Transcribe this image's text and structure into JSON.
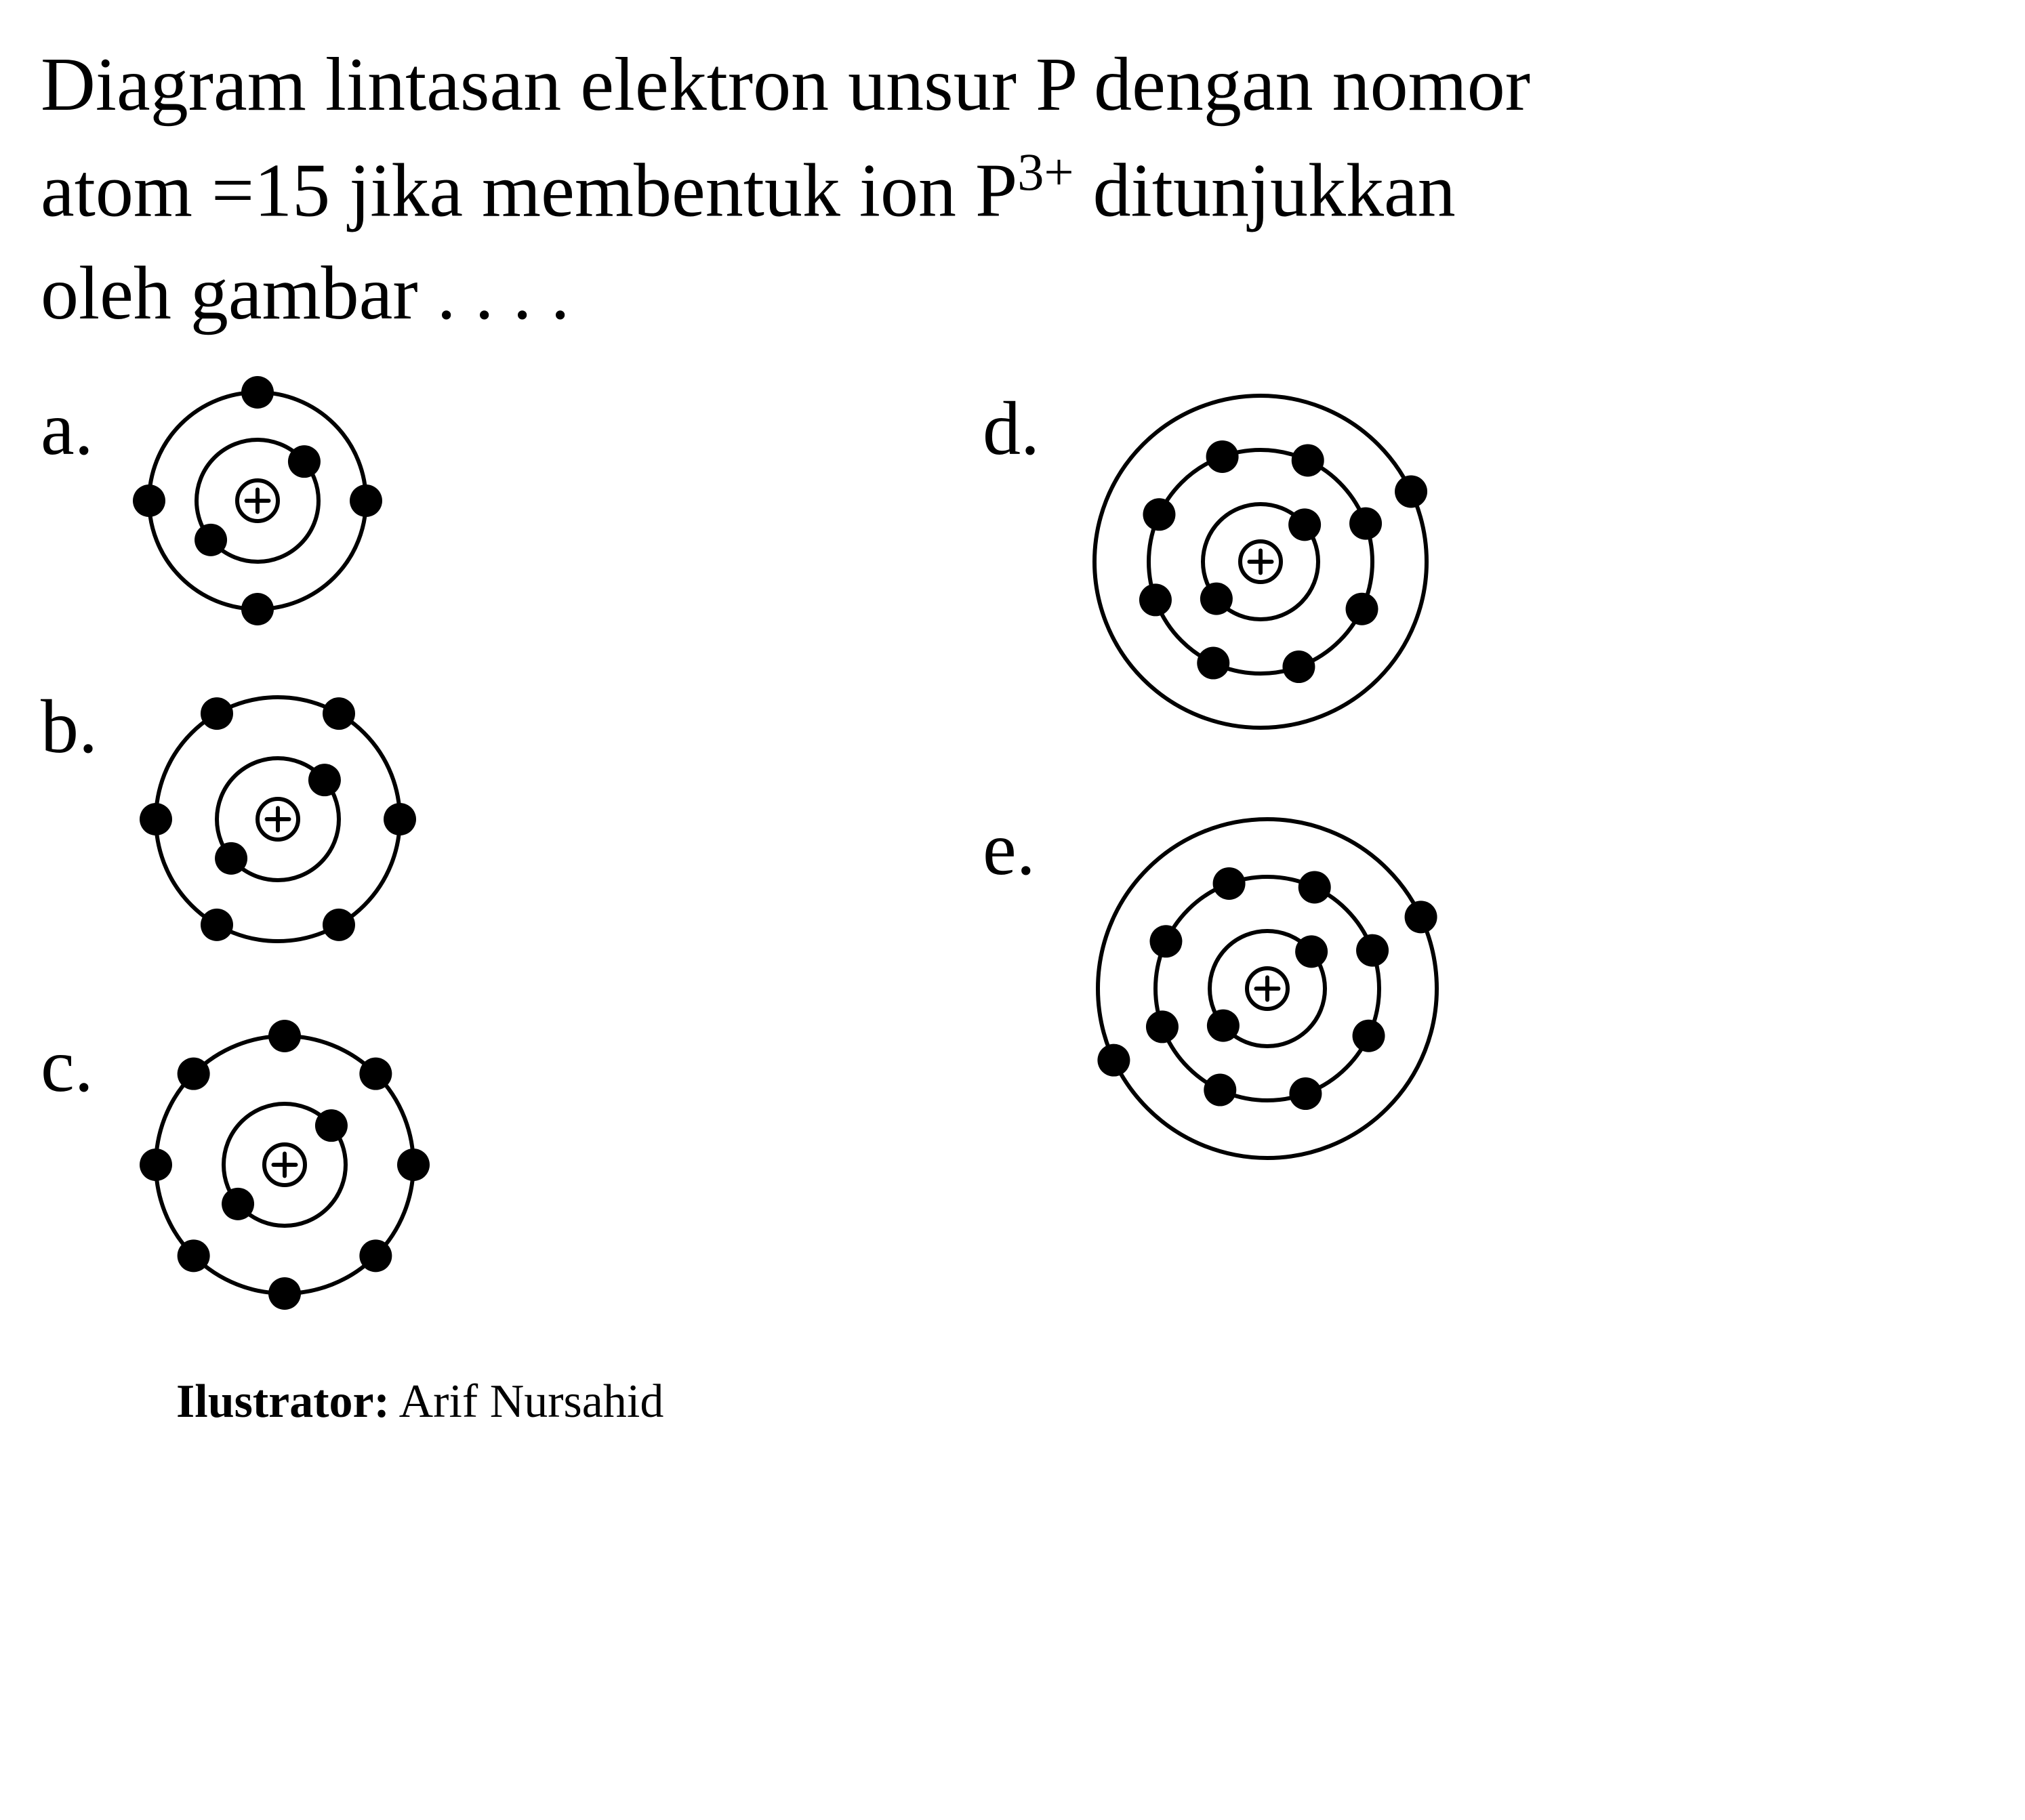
{
  "question": {
    "line1": "Diagram lintasan elektron unsur P dengan nomor",
    "line2_part1": "atom =15  jika membentuk ion P",
    "line2_super": "3+",
    "line2_part2": "  ditunjukkan",
    "line3": "oleh gambar . . . ."
  },
  "options": {
    "a": {
      "label": "a."
    },
    "b": {
      "label": "b."
    },
    "c": {
      "label": "c."
    },
    "d": {
      "label": "d."
    },
    "e": {
      "label": "e."
    }
  },
  "illustrator": {
    "label": "Ilustrator:",
    "name": " Arif Nursahid"
  },
  "diagrams": {
    "stroke_color": "#000000",
    "electron_color": "#000000",
    "nucleus_stroke": "#000000",
    "background": "#ffffff",
    "stroke_width": 6,
    "electron_radius": 24,
    "a": {
      "size": 380,
      "nucleus_r": 30,
      "shells": [
        {
          "r": 90,
          "electrons": [
            50,
            230
          ]
        },
        {
          "r": 160,
          "electrons": [
            90,
            180,
            270,
            0
          ]
        }
      ]
    },
    "b": {
      "size": 440,
      "nucleus_r": 30,
      "shells": [
        {
          "r": 90,
          "electrons": [
            50,
            230
          ]
        },
        {
          "r": 180,
          "electrons": [
            90,
            150,
            210,
            270,
            330,
            30
          ]
        }
      ]
    },
    "c": {
      "size": 460,
      "nucleus_r": 30,
      "shells": [
        {
          "r": 90,
          "electrons": [
            50,
            230
          ]
        },
        {
          "r": 190,
          "electrons": [
            90,
            135,
            180,
            225,
            270,
            315,
            0,
            45
          ]
        }
      ]
    },
    "d": {
      "size": 560,
      "nucleus_r": 30,
      "shells": [
        {
          "r": 85,
          "electrons": [
            50,
            230
          ]
        },
        {
          "r": 165,
          "electrons": [
            70,
            115,
            160,
            205,
            250,
            295,
            340,
            25
          ]
        },
        {
          "r": 245,
          "electrons": [
            65
          ]
        }
      ]
    },
    "e": {
      "size": 580,
      "nucleus_r": 30,
      "shells": [
        {
          "r": 85,
          "electrons": [
            50,
            230
          ]
        },
        {
          "r": 165,
          "electrons": [
            70,
            115,
            160,
            205,
            250,
            295,
            340,
            25
          ]
        },
        {
          "r": 250,
          "electrons": [
            65,
            245
          ]
        }
      ]
    }
  }
}
